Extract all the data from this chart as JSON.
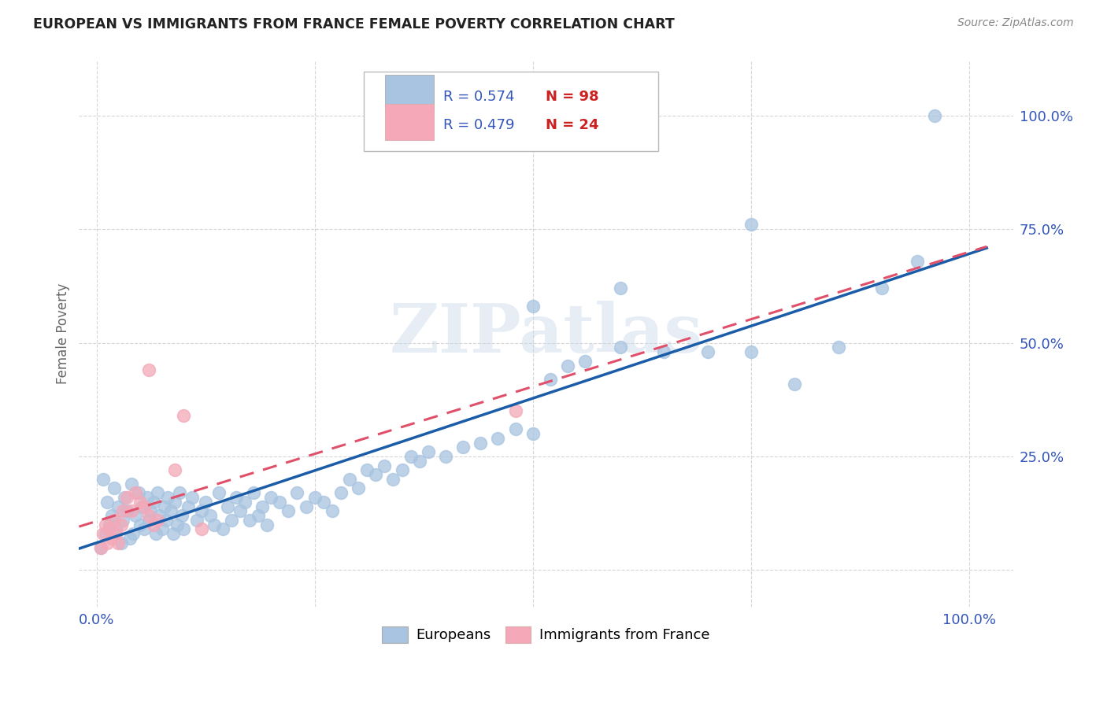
{
  "title": "EUROPEAN VS IMMIGRANTS FROM FRANCE FEMALE POVERTY CORRELATION CHART",
  "source": "Source: ZipAtlas.com",
  "ylabel": "Female Poverty",
  "xticks": [
    0.0,
    0.25,
    0.5,
    0.75,
    1.0
  ],
  "xticklabels": [
    "0.0%",
    "",
    "",
    "",
    "100.0%"
  ],
  "yticks": [
    0.0,
    0.25,
    0.5,
    0.75,
    1.0
  ],
  "yticklabels": [
    "",
    "25.0%",
    "50.0%",
    "75.0%",
    "100.0%"
  ],
  "europeans_color": "#a8c4e0",
  "europeans_edge": "#7aafd4",
  "immigrants_color": "#f4a8b8",
  "immigrants_edge": "#e87090",
  "trendline_blue": "#1a5ca8",
  "trendline_pink": "#e0506a",
  "legend_R_blue": "0.574",
  "legend_N_blue": "98",
  "legend_R_pink": "0.479",
  "legend_N_pink": "24",
  "watermark": "ZIPatlas",
  "r_n_color_R": "#3355bb",
  "r_n_color_N": "#cc2222",
  "grid_color": "#cccccc",
  "tick_color": "#3355bb",
  "ylabel_color": "#666666",
  "title_color": "#222222",
  "source_color": "#888888",
  "background": "#ffffff",
  "eu_x": [
    0.005,
    0.008,
    0.01,
    0.012,
    0.015,
    0.018,
    0.02,
    0.022,
    0.025,
    0.028,
    0.03,
    0.032,
    0.035,
    0.038,
    0.04,
    0.042,
    0.045,
    0.048,
    0.05,
    0.052,
    0.055,
    0.058,
    0.06,
    0.062,
    0.065,
    0.068,
    0.07,
    0.072,
    0.075,
    0.078,
    0.08,
    0.082,
    0.085,
    0.088,
    0.09,
    0.092,
    0.095,
    0.098,
    0.1,
    0.105,
    0.11,
    0.115,
    0.12,
    0.125,
    0.13,
    0.135,
    0.14,
    0.145,
    0.15,
    0.155,
    0.16,
    0.165,
    0.17,
    0.175,
    0.18,
    0.185,
    0.19,
    0.195,
    0.2,
    0.21,
    0.22,
    0.23,
    0.24,
    0.25,
    0.26,
    0.27,
    0.28,
    0.29,
    0.3,
    0.31,
    0.32,
    0.33,
    0.34,
    0.35,
    0.36,
    0.37,
    0.38,
    0.4,
    0.42,
    0.44,
    0.46,
    0.48,
    0.5,
    0.52,
    0.54,
    0.56,
    0.6,
    0.65,
    0.7,
    0.75,
    0.8,
    0.85,
    0.9,
    0.5,
    0.6,
    0.75,
    0.94,
    0.96
  ],
  "eu_y": [
    0.05,
    0.2,
    0.08,
    0.15,
    0.1,
    0.12,
    0.18,
    0.09,
    0.14,
    0.06,
    0.11,
    0.16,
    0.13,
    0.07,
    0.19,
    0.08,
    0.12,
    0.17,
    0.1,
    0.14,
    0.09,
    0.16,
    0.11,
    0.13,
    0.15,
    0.08,
    0.17,
    0.12,
    0.09,
    0.14,
    0.11,
    0.16,
    0.13,
    0.08,
    0.15,
    0.1,
    0.17,
    0.12,
    0.09,
    0.14,
    0.16,
    0.11,
    0.13,
    0.15,
    0.12,
    0.1,
    0.17,
    0.09,
    0.14,
    0.11,
    0.16,
    0.13,
    0.15,
    0.11,
    0.17,
    0.12,
    0.14,
    0.1,
    0.16,
    0.15,
    0.13,
    0.17,
    0.14,
    0.16,
    0.15,
    0.13,
    0.17,
    0.2,
    0.18,
    0.22,
    0.21,
    0.23,
    0.2,
    0.22,
    0.25,
    0.24,
    0.26,
    0.25,
    0.27,
    0.28,
    0.29,
    0.31,
    0.3,
    0.42,
    0.45,
    0.46,
    0.49,
    0.48,
    0.48,
    0.48,
    0.41,
    0.49,
    0.62,
    0.58,
    0.62,
    0.76,
    0.68,
    1.0
  ],
  "im_x": [
    0.005,
    0.008,
    0.01,
    0.012,
    0.015,
    0.018,
    0.02,
    0.022,
    0.025,
    0.028,
    0.03,
    0.035,
    0.04,
    0.045,
    0.05,
    0.055,
    0.06,
    0.065,
    0.07,
    0.09,
    0.1,
    0.12,
    0.48,
    0.06
  ],
  "im_y": [
    0.05,
    0.08,
    0.1,
    0.06,
    0.09,
    0.07,
    0.11,
    0.08,
    0.06,
    0.1,
    0.13,
    0.16,
    0.13,
    0.17,
    0.15,
    0.14,
    0.12,
    0.1,
    0.11,
    0.22,
    0.34,
    0.09,
    0.35,
    0.44
  ]
}
